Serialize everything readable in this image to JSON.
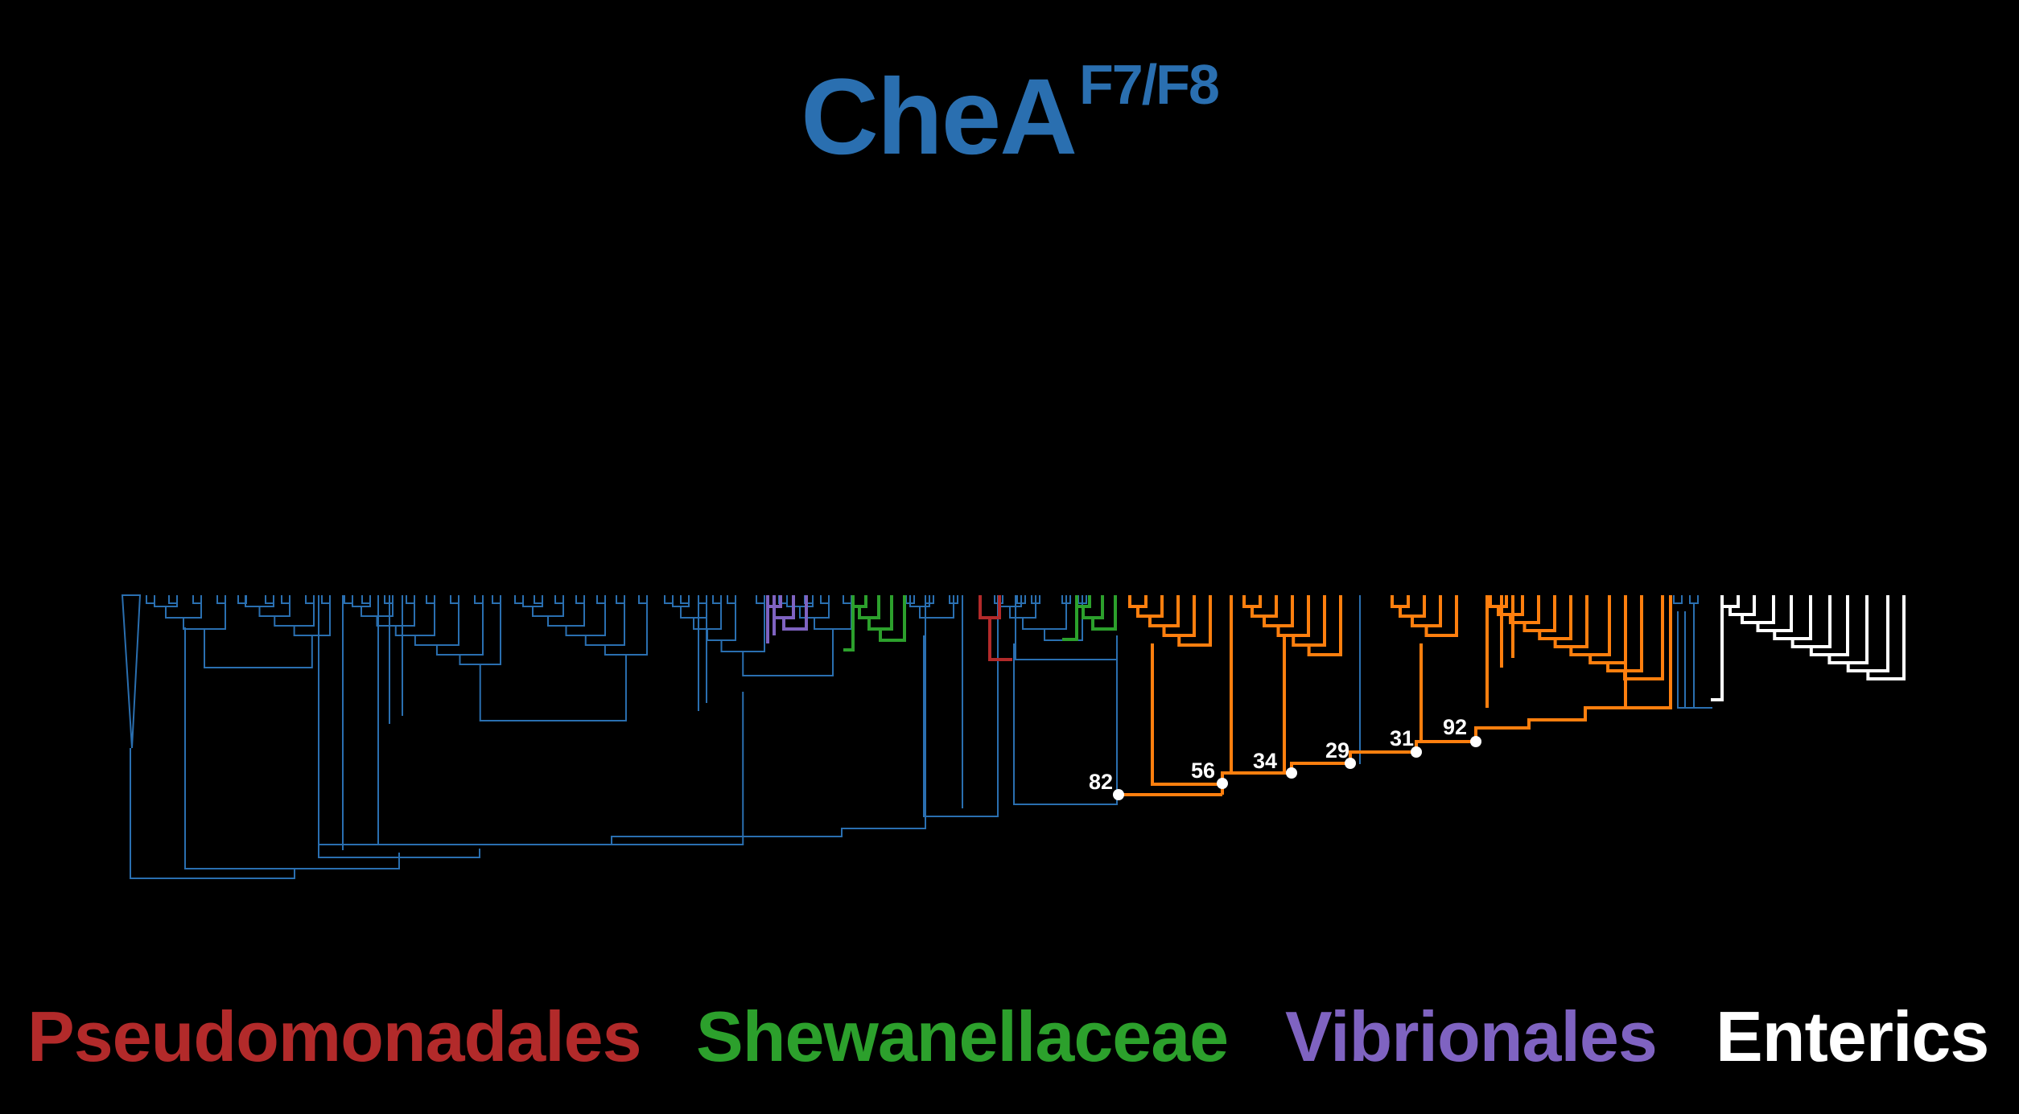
{
  "title": {
    "main": "CheA",
    "superscript": "F7/F8",
    "color": "#2a6fb0"
  },
  "colors": {
    "background": "#000000",
    "base": "#2a6fb0",
    "Pseudomonadales": "#b22a2a",
    "Shewanellaceae": "#2ca02c",
    "Vibrionales": "#7f63c1",
    "Enterics": "#ffffff",
    "highlight": "#ff7f0e"
  },
  "legend": [
    {
      "label": "Pseudomonadales",
      "color": "#b22a2a"
    },
    {
      "label": "Shewanellaceae",
      "color": "#2ca02c"
    },
    {
      "label": "Vibrionales",
      "color": "#7f63c1"
    },
    {
      "label": "Enterics",
      "color": "#ffffff"
    }
  ],
  "support_values": [
    "82",
    "56",
    "34",
    "29",
    "31",
    "92"
  ]
}
